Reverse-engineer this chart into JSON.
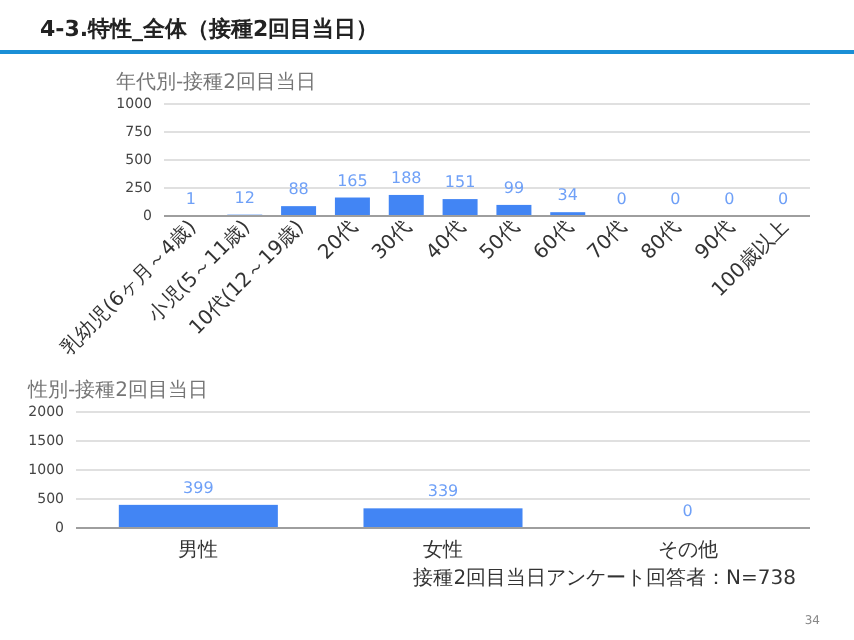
{
  "chart_data": [
    {
      "type": "bar",
      "title": "年代別-接種2回目当日",
      "annotations": [
        "4-3.特性_全体（接種2回目当日）"
      ],
      "categories": [
        "乳幼児(6ヶ月～4歳)",
        "小児(5～11歳)",
        "10代(12～19歳)",
        "20代",
        "30代",
        "40代",
        "50代",
        "60代",
        "70代",
        "80代",
        "90代",
        "100歳以上"
      ],
      "values": [
        1,
        12,
        88,
        165,
        188,
        151,
        99,
        34,
        0,
        0,
        0,
        0
      ],
      "color": "#4285f4",
      "ylim": [
        0,
        1000
      ],
      "yticks": [
        0,
        250,
        500,
        750,
        1000
      ],
      "grid": "y",
      "data_labels": true
    },
    {
      "type": "bar",
      "title": "性別-接種2回目当日",
      "annotations": [
        "接種2回目当日アンケート回答者：N=738",
        "34"
      ],
      "categories": [
        "男性",
        "女性",
        "その他"
      ],
      "values": [
        399,
        339,
        0
      ],
      "color": "#4285f4",
      "ylim": [
        0,
        2000
      ],
      "yticks": [
        0,
        500,
        1000,
        1500,
        2000
      ],
      "grid": "y",
      "data_labels": true
    }
  ]
}
